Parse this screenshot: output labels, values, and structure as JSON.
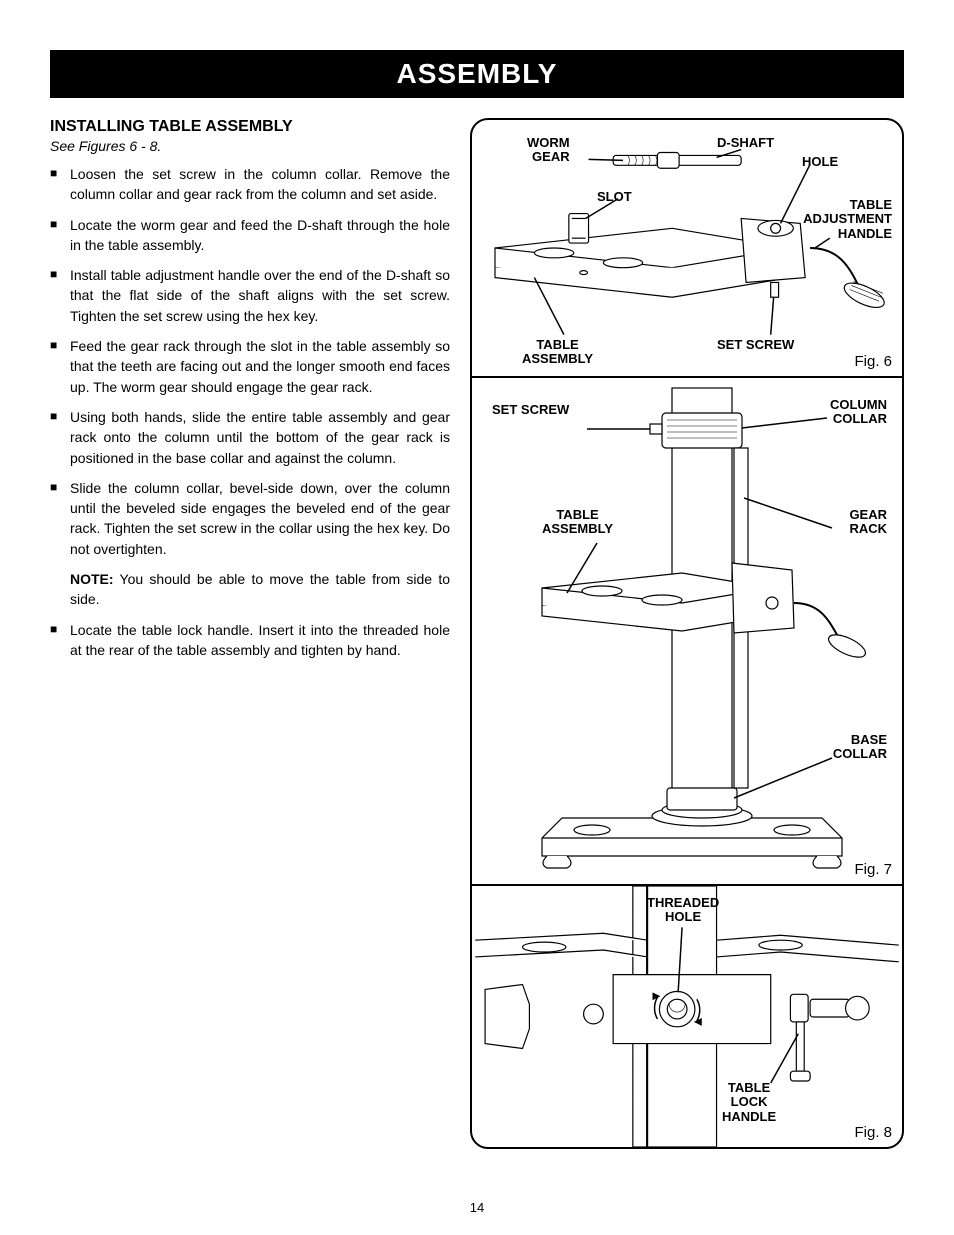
{
  "header": "ASSEMBLY",
  "section": {
    "title": "INSTALLING TABLE ASSEMBLY",
    "subtitle": "See Figures 6 - 8.",
    "bullets": [
      "Loosen the set screw in the column collar. Remove the column collar and gear rack from the column and set aside.",
      "Locate the worm gear and feed the D-shaft through the hole in the table assembly.",
      "Install table adjustment handle over the end of the D-shaft so that the flat side of the shaft aligns with the set screw. Tighten the set screw using the hex key.",
      "Feed the gear rack through the slot in the table assembly so that the teeth are facing out and the longer smooth end faces up. The worm gear should engage the gear rack.",
      "Using both hands, slide the entire table assembly and gear rack onto the column until the bottom of the gear rack is positioned in the base collar and against the column.",
      "Slide the column collar, bevel-side down, over the column until the beveled side engages the beveled end of the gear rack. Tighten the set screw in the collar using the hex key. Do not overtighten."
    ],
    "note_label": "NOTE:",
    "note": " You should be able to move the table from side to side.",
    "last_bullet": "Locate the table lock handle. Insert it into the threaded hole at the rear of the table assembly and tighten by hand."
  },
  "figures": {
    "fig6": {
      "caption": "Fig. 6",
      "labels": {
        "worm_gear": "WORM\nGEAR",
        "d_shaft": "D-SHAFT",
        "hole": "HOLE",
        "slot": "SLOT",
        "table_adjustment_handle": "TABLE\nADJUSTMENT\nHANDLE",
        "set_screw": "SET SCREW",
        "table_assembly": "TABLE\nASSEMBLY"
      }
    },
    "fig7": {
      "caption": "Fig. 7",
      "labels": {
        "set_screw": "SET SCREW",
        "column_collar": "COLUMN\nCOLLAR",
        "table_assembly": "TABLE\nASSEMBLY",
        "gear_rack": "GEAR\nRACK",
        "base_collar": "BASE\nCOLLAR"
      }
    },
    "fig8": {
      "caption": "Fig. 8",
      "labels": {
        "threaded_hole": "THREADED\nHOLE",
        "table_lock_handle": "TABLE\nLOCK\nHANDLE"
      }
    }
  },
  "page_number": "14"
}
